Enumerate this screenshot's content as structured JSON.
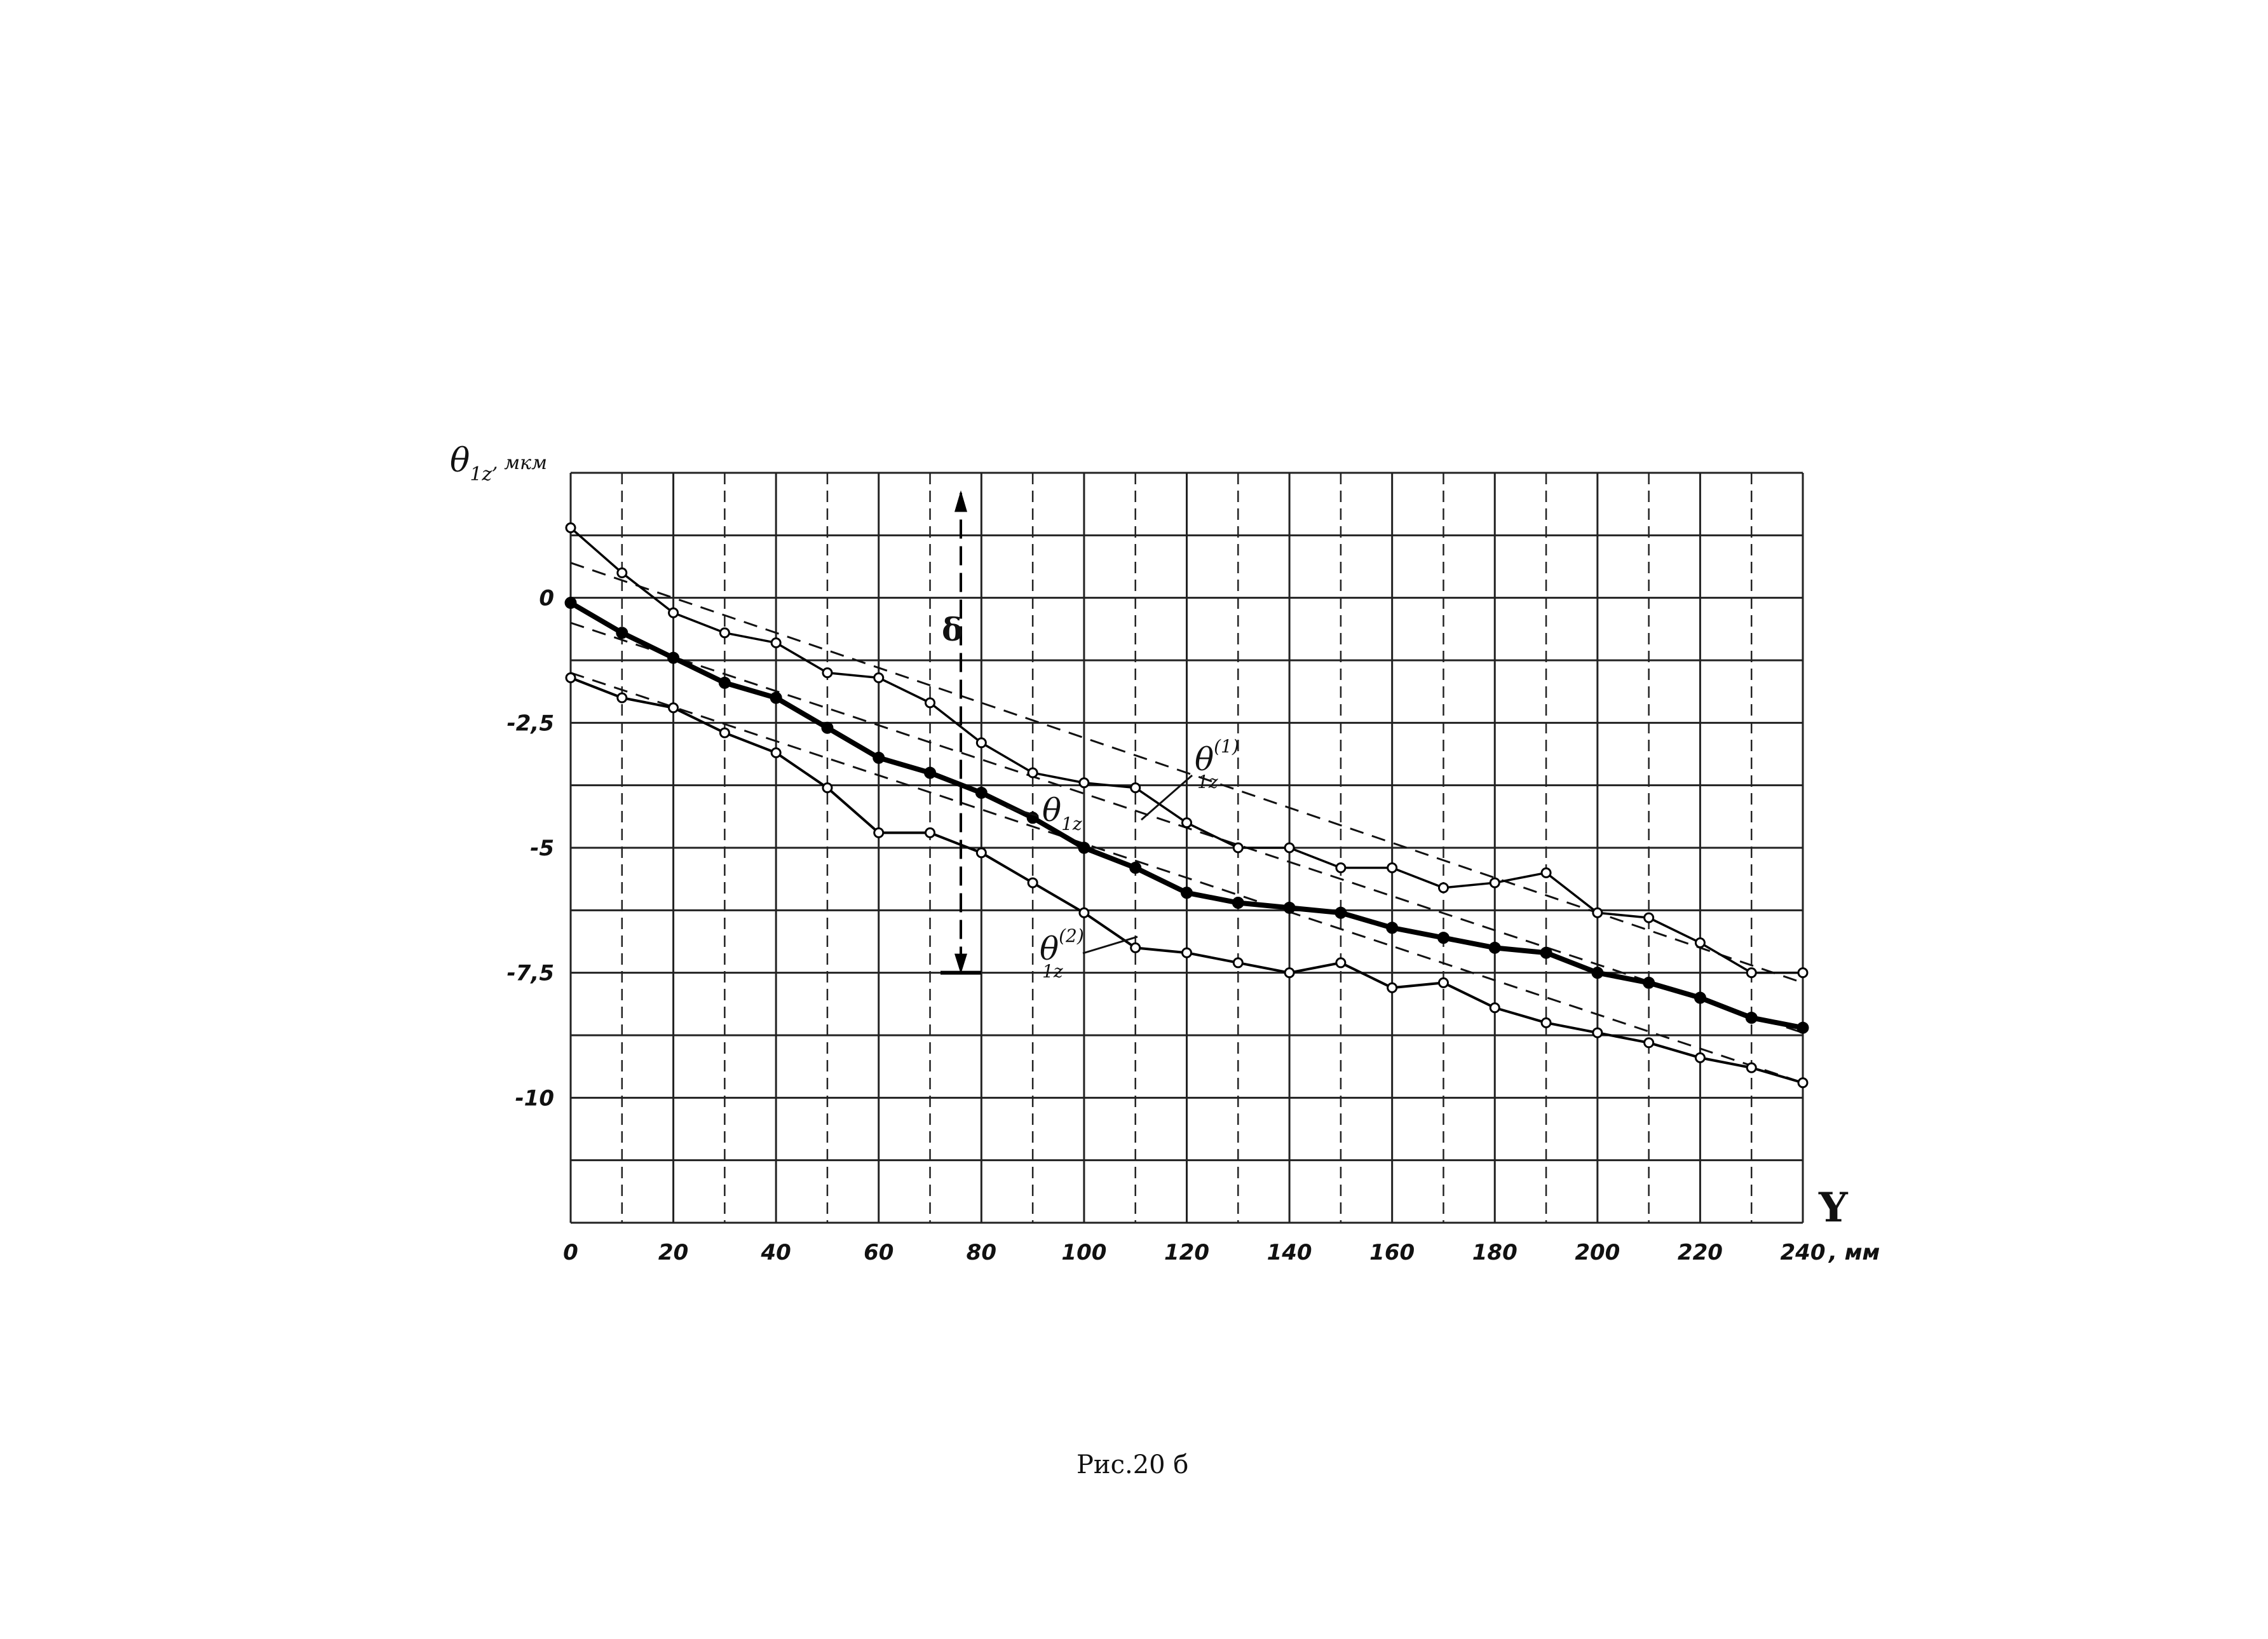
{
  "chart_data": {
    "type": "line",
    "ylabel_main": "θ",
    "ylabel_sub": "1z",
    "ylabel_unit": ", мкм",
    "xlabel_main": "Y",
    "x_unit_suffix": ", мм",
    "xlim": [
      0,
      240
    ],
    "ylim": [
      -12.5,
      2.5
    ],
    "x_ticks": [
      0,
      20,
      40,
      60,
      80,
      100,
      120,
      140,
      160,
      180,
      200,
      220,
      240
    ],
    "x_tick_labels": [
      "0",
      "20",
      "40",
      "60",
      "80",
      "100",
      "120",
      "140",
      "160",
      "180",
      "200",
      "220",
      "240"
    ],
    "y_ticks": [
      0,
      -2.5,
      -5,
      -7.5,
      -10
    ],
    "y_tick_labels": [
      "0",
      "-2,5",
      "-5",
      "-7,5",
      "-10"
    ],
    "grid": true,
    "x": [
      0,
      10,
      20,
      30,
      40,
      50,
      60,
      70,
      80,
      90,
      100,
      110,
      120,
      130,
      140,
      150,
      160,
      170,
      180,
      190,
      200,
      210,
      220,
      230,
      240
    ],
    "series": [
      {
        "label_main": "θ",
        "label_sub": "1z",
        "label_sup": "(1)",
        "values": [
          1.4,
          0.5,
          -0.3,
          -0.7,
          -0.9,
          -1.5,
          -1.6,
          -2.1,
          -2.9,
          -3.5,
          -3.7,
          -3.8,
          -4.5,
          -5.0,
          -5.0,
          -5.4,
          -5.4,
          -5.8,
          -5.7,
          -5.5,
          -6.3,
          -6.4,
          -6.9,
          -7.5,
          -7.5
        ]
      },
      {
        "label_main": "θ",
        "label_sub": "1z",
        "values": [
          -0.1,
          -0.7,
          -1.2,
          -1.7,
          -2.0,
          -2.6,
          -3.2,
          -3.5,
          -3.9,
          -4.4,
          -5.0,
          -5.4,
          -5.9,
          -6.1,
          -6.2,
          -6.3,
          -6.6,
          -6.8,
          -7.0,
          -7.1,
          -7.5,
          -7.7,
          -8.0,
          -8.4,
          -8.6
        ]
      },
      {
        "label_main": "θ",
        "label_sub": "1z",
        "label_sup": "(2)",
        "values": [
          -1.6,
          -2.0,
          -2.2,
          -2.7,
          -3.1,
          -3.8,
          -4.7,
          -4.7,
          -5.1,
          -5.7,
          -6.3,
          -7.0,
          -7.1,
          -7.3,
          -7.5,
          -7.3,
          -7.8,
          -7.7,
          -8.2,
          -8.5,
          -8.7,
          -8.9,
          -9.2,
          -9.4,
          -9.7
        ]
      }
    ],
    "trend_lines": [
      {
        "y_start": 0.7,
        "y_end": -7.7
      },
      {
        "y_start": -0.5,
        "y_end": -8.7
      },
      {
        "y_start": -1.5,
        "y_end": -9.7
      }
    ],
    "marker": {
      "label": "δ",
      "x": 76,
      "y_top": 2.1,
      "y_bottom": -7.5
    },
    "caption": "Рис.20 б"
  }
}
